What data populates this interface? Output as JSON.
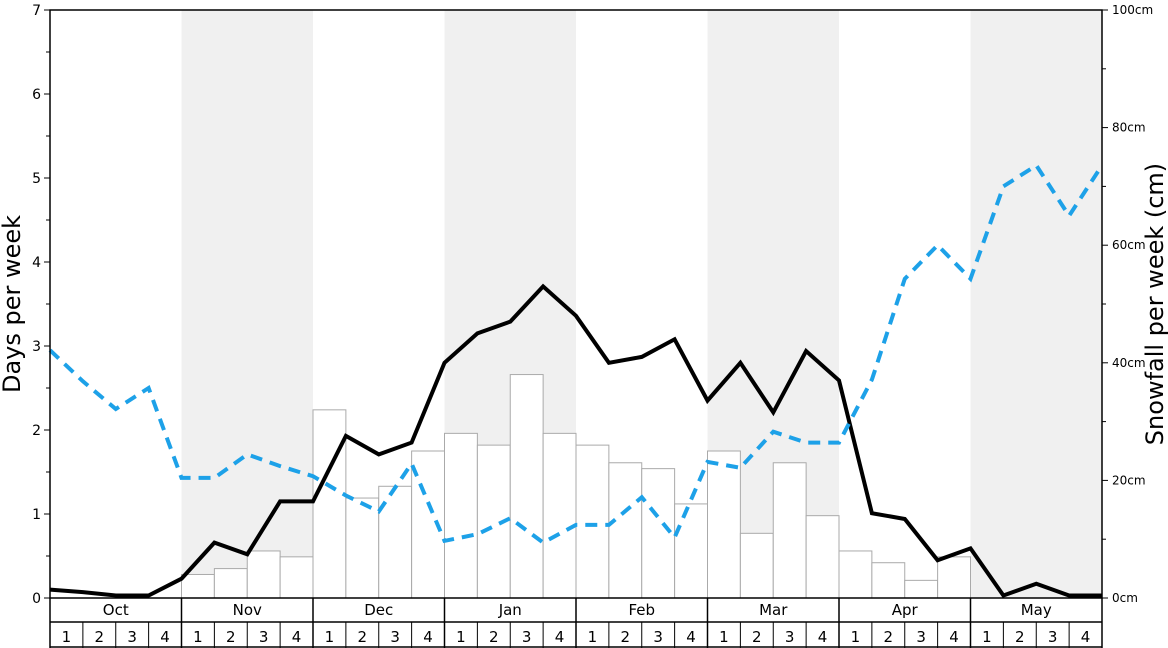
{
  "chart_data": {
    "type": "bar",
    "ylabel_left": "Days per week",
    "ylabel_right": "Snowfall per week (cm)",
    "ylim_left": [
      0,
      7
    ],
    "ylim_right": [
      0,
      100
    ],
    "left_ticks": [
      "0",
      "1",
      "2",
      "3",
      "4",
      "5",
      "6",
      "7"
    ],
    "right_ticks": [
      "0cm",
      "20cm",
      "40cm",
      "60cm",
      "80cm",
      "100cm"
    ],
    "months": [
      "Oct",
      "Nov",
      "Dec",
      "Jan",
      "Feb",
      "Mar",
      "Apr",
      "May"
    ],
    "weeks": [
      "1",
      "2",
      "3",
      "4"
    ],
    "snowfall_cm": [
      0,
      0,
      0,
      0,
      4,
      5,
      8,
      7,
      32,
      17,
      19,
      25,
      28,
      26,
      38,
      28,
      26,
      23,
      22,
      16,
      25,
      11,
      23,
      14,
      8,
      6,
      3,
      7,
      0,
      0,
      0,
      0
    ],
    "series": [
      {
        "style": "solid-black",
        "values": [
          0.1,
          0.07,
          0.03,
          0.03,
          0.23,
          0.66,
          0.52,
          1.15,
          1.15,
          1.93,
          1.71,
          1.85,
          2.8,
          3.15,
          3.29,
          3.71,
          3.36,
          2.8,
          2.87,
          3.08,
          2.35,
          2.8,
          2.21,
          2.94,
          2.59,
          1.01,
          0.94,
          0.45,
          0.59,
          0.03,
          0.17,
          0.03,
          0.03
        ]
      },
      {
        "style": "dashed-blue",
        "values": [
          2.95,
          2.58,
          2.25,
          2.5,
          1.43,
          1.43,
          1.71,
          1.57,
          1.45,
          1.22,
          1.03,
          1.6,
          0.68,
          0.76,
          0.95,
          0.66,
          0.87,
          0.87,
          1.2,
          0.72,
          1.62,
          1.55,
          1.98,
          1.85,
          1.85,
          2.6,
          3.8,
          4.2,
          3.8,
          4.9,
          5.15,
          4.55,
          5.15
        ]
      }
    ],
    "colors": {
      "shade": "#f0f0f0",
      "bar_stroke": "#aaaaaa",
      "solid_line": "#000000",
      "dashed_line": "#1da1e8"
    }
  }
}
